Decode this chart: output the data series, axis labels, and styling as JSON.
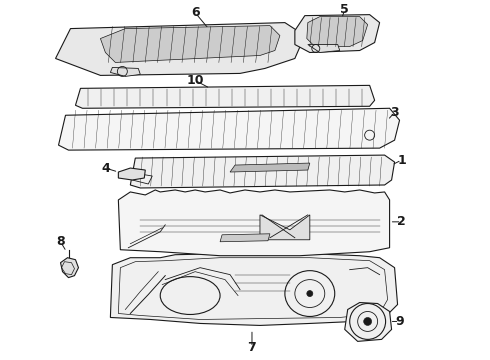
{
  "bg_color": "#ffffff",
  "line_color": "#1a1a1a",
  "figsize": [
    4.9,
    3.6
  ],
  "dpi": 100,
  "label_fontsize": 9
}
